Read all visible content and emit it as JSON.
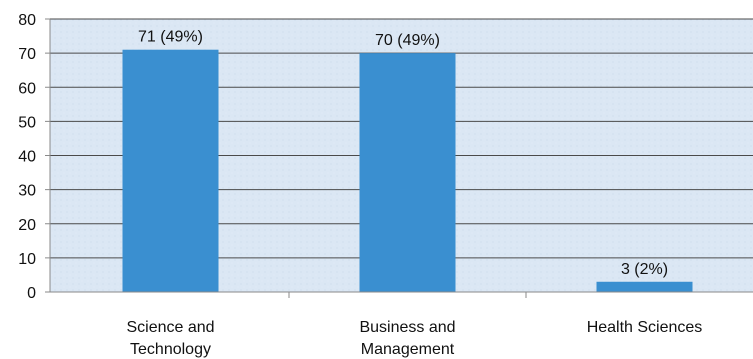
{
  "chart_data": {
    "type": "bar",
    "title": "",
    "xlabel": "",
    "ylabel": "",
    "categories": [
      [
        "Science and",
        "Technology"
      ],
      [
        "Business and",
        "Management"
      ],
      [
        "Health Sciences"
      ]
    ],
    "values": [
      71,
      70,
      3
    ],
    "data_labels": [
      "71 (49%)",
      "70 (49%)",
      "3 (2%)"
    ],
    "ylim": [
      0,
      80
    ],
    "yticks": [
      "0",
      "10",
      "20",
      "30",
      "40",
      "50",
      "60",
      "70",
      "80"
    ],
    "grid": true,
    "legend": "none",
    "colors": {
      "bar": "#3a8fd0",
      "plot_background": "#dbe7f4",
      "gridline": "#4a4a4a",
      "axis": "#8a8a8a"
    }
  }
}
